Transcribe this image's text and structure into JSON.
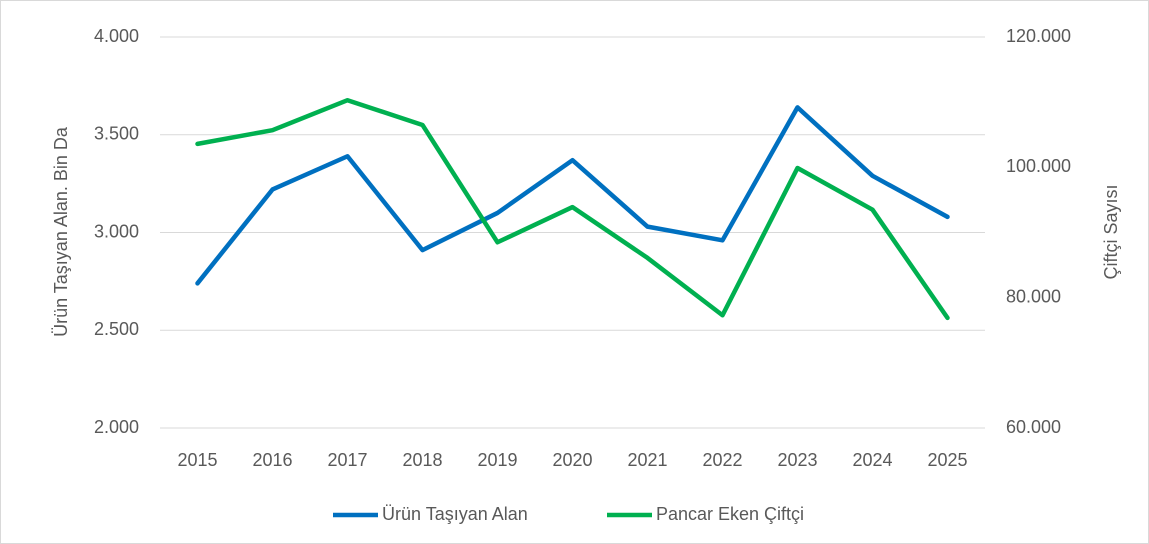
{
  "chart_data": {
    "type": "line",
    "categories": [
      "2015",
      "2016",
      "2017",
      "2018",
      "2019",
      "2020",
      "2021",
      "2022",
      "2023",
      "2024",
      "2025"
    ],
    "series": [
      {
        "name": "Ürün Taşıyan Alan",
        "color": "#0070c0",
        "values": [
          2740,
          3220,
          3390,
          2910,
          3100,
          3370,
          3030,
          2960,
          3640,
          3290,
          3080
        ]
      },
      {
        "name": "Pancar Eken Çiftçi",
        "color": "#00b050",
        "axis": "y2",
        "values": [
          103600,
          105700,
          110300,
          106500,
          88500,
          93900,
          86100,
          77300,
          99900,
          93500,
          76900
        ]
      }
    ],
    "ylabel": "Ürün Taşıyan Alan. Bin Da",
    "y2label": "Çiftçi Sayısı",
    "ylim": [
      2000,
      4000
    ],
    "yticks": [
      {
        "value": 2000,
        "label": "2.000"
      },
      {
        "value": 2500,
        "label": "2.500"
      },
      {
        "value": 3000,
        "label": "3.000"
      },
      {
        "value": 3500,
        "label": "3.500"
      },
      {
        "value": 4000,
        "label": "4.000"
      }
    ],
    "y2lim": [
      60000,
      120000
    ],
    "y2ticks": [
      {
        "value": 60000,
        "label": "60.000"
      },
      {
        "value": 80000,
        "label": "80.000"
      },
      {
        "value": 100000,
        "label": "100.000"
      },
      {
        "value": 120000,
        "label": "120.000"
      }
    ],
    "grid": true,
    "legend": "bottom"
  }
}
